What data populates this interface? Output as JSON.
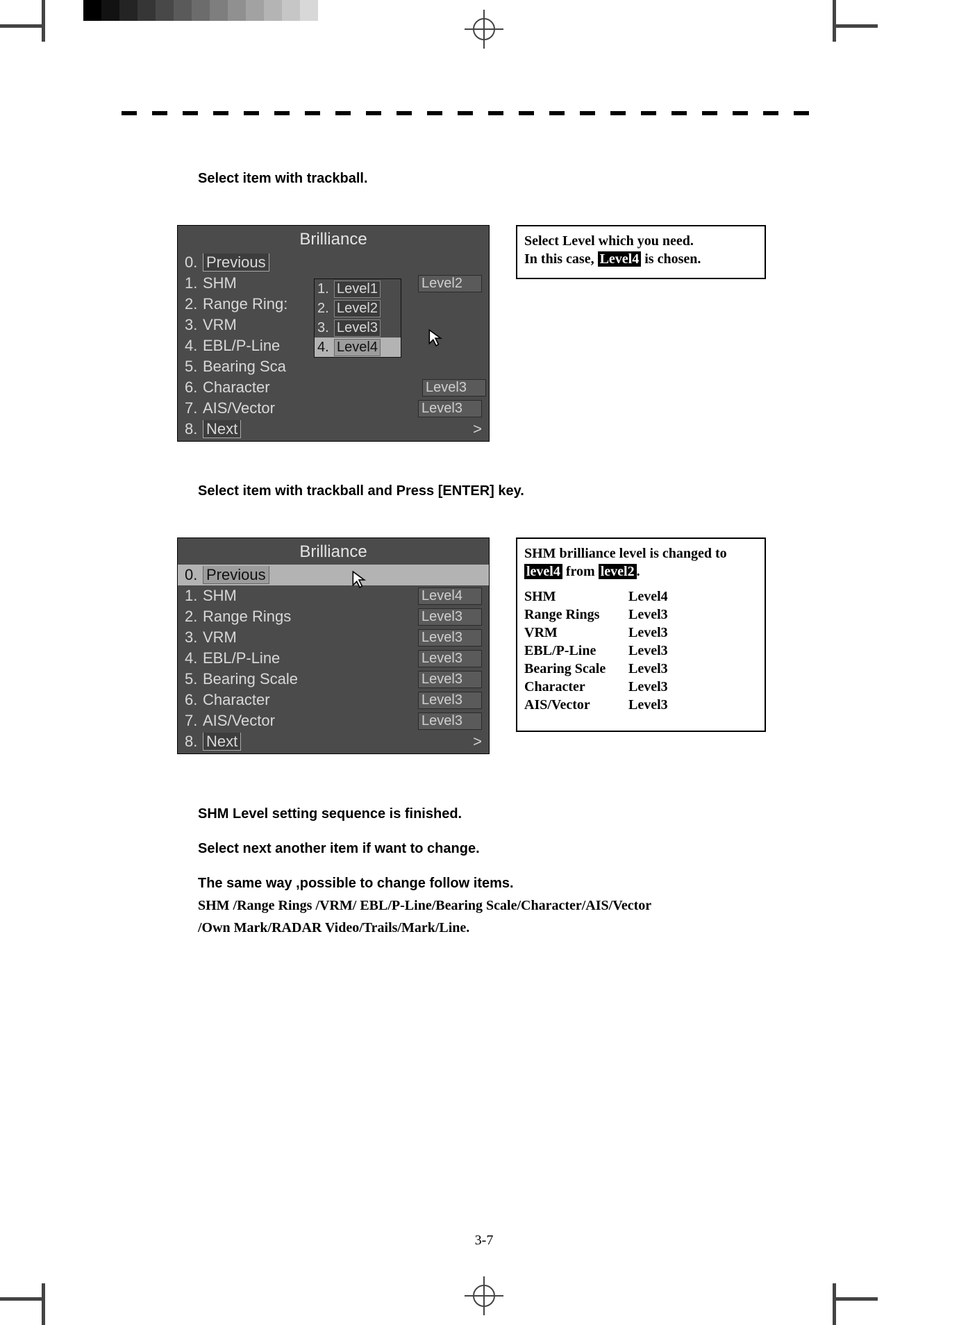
{
  "page_number": "3-7",
  "gray_ramp": [
    "#000000",
    "#121212",
    "#242424",
    "#363636",
    "#484848",
    "#5a5a5a",
    "#6c6c6c",
    "#7e7e7e",
    "#909090",
    "#a2a2a2",
    "#b4b4b4",
    "#c6c6c6",
    "#d8d8d8"
  ],
  "instr1": "Select item with trackball.",
  "instr2": "Select item with trackball and Press [ENTER] key.",
  "menu_title": "Brilliance",
  "menu_a": {
    "items": [
      {
        "idx": "0.",
        "label": "Previous",
        "boxed": true
      },
      {
        "idx": "1.",
        "label": "SHM",
        "val": "Level2"
      },
      {
        "idx": "2.",
        "label": "Range Rings",
        "trunc": "Range Ring:"
      },
      {
        "idx": "3.",
        "label": "VRM"
      },
      {
        "idx": "4.",
        "label": "EBL/P-Line"
      },
      {
        "idx": "5.",
        "label": "Bearing Scale",
        "trunc": "Bearing Sca"
      },
      {
        "idx": "6.",
        "label": "Character",
        "val": "Level3",
        "valshift": true
      },
      {
        "idx": "7.",
        "label": "AIS/Vector",
        "val": "Level3"
      },
      {
        "idx": "8.",
        "label": "Next",
        "boxed": true,
        "chev": ">"
      }
    ],
    "submenu": [
      {
        "idx": "1.",
        "label": "Level1"
      },
      {
        "idx": "2.",
        "label": "Level2"
      },
      {
        "idx": "3.",
        "label": "Level3"
      },
      {
        "idx": "4.",
        "label": "Level4",
        "selected": true
      }
    ]
  },
  "menu_b": {
    "items": [
      {
        "idx": "0.",
        "label": "Previous",
        "boxed": true,
        "highlight": true
      },
      {
        "idx": "1.",
        "label": "SHM",
        "val": "Level4"
      },
      {
        "idx": "2.",
        "label": "Range Rings",
        "val": "Level3"
      },
      {
        "idx": "3.",
        "label": "VRM",
        "val": "Level3"
      },
      {
        "idx": "4.",
        "label": "EBL/P-Line",
        "val": "Level3"
      },
      {
        "idx": "5.",
        "label": "Bearing Scale",
        "val": "Level3"
      },
      {
        "idx": "6.",
        "label": "Character",
        "val": "Level3"
      },
      {
        "idx": "7.",
        "label": "AIS/Vector",
        "val": "Level3"
      },
      {
        "idx": "8.",
        "label": "Next",
        "boxed": true,
        "chev": ">"
      }
    ]
  },
  "note1": {
    "line1": "Select Level which you need.",
    "line2_pre": "In this case, ",
    "line2_hl": "Level4",
    "line2_post": " is chosen."
  },
  "note2": {
    "line1_pre": "SHM brilliance level is changed to ",
    "line1_hl1": "level4",
    "line1_mid": " from ",
    "line1_hl2": "level2",
    "line1_post": ".",
    "rows": [
      {
        "k": "SHM",
        "v": "Level4"
      },
      {
        "k": "Range Rings",
        "v": "Level3"
      },
      {
        "k": "VRM",
        "v": "Level3"
      },
      {
        "k": "EBL/P-Line",
        "v": "Level3"
      },
      {
        "k": "Bearing Scale",
        "v": "Level3"
      },
      {
        "k": "Character",
        "v": "Level3"
      },
      {
        "k": "AIS/Vector",
        "v": "Level3"
      }
    ]
  },
  "body": {
    "l1": "SHM Level setting sequence is finished.",
    "l2": "Select next another item if want to change.",
    "l3": "The same way ,possible to change follow items.",
    "l4": "SHM /Range Rings /VRM/ EBL/P-Line/Bearing Scale/Character/AIS/Vector",
    "l5": "/Own Mark/RADAR Video/Trails/Mark/Line."
  }
}
